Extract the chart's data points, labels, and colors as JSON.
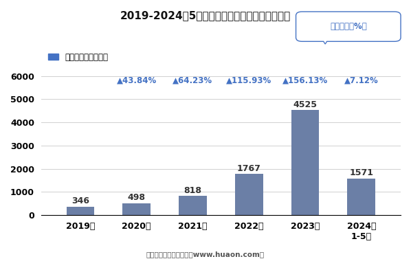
{
  "title": "2019-2024年5月郑州商品交易所棉花期权成交量",
  "categories": [
    "2019年",
    "2020年",
    "2021年",
    "2022年",
    "2023年",
    "2024年\n1-5月"
  ],
  "values": [
    346,
    498,
    818,
    1767,
    4525,
    1571
  ],
  "bar_color": "#6b7fa6",
  "ylim": [
    0,
    6000
  ],
  "yticks": [
    0,
    1000,
    2000,
    3000,
    4000,
    5000,
    6000
  ],
  "legend_label": "期权成交量（万手）",
  "legend_color": "#4472c4",
  "growth_rates": [
    "▲43.84%",
    "▲64.23%",
    "▲115.93%",
    "▲156.13%",
    "▲7.12%"
  ],
  "growth_color": "#4472c4",
  "box_label": "同比增速（%）",
  "box_text_color": "#4472c4",
  "background_color": "#ffffff",
  "footer": "制图：华经产业研究院（www.huaon.com）"
}
